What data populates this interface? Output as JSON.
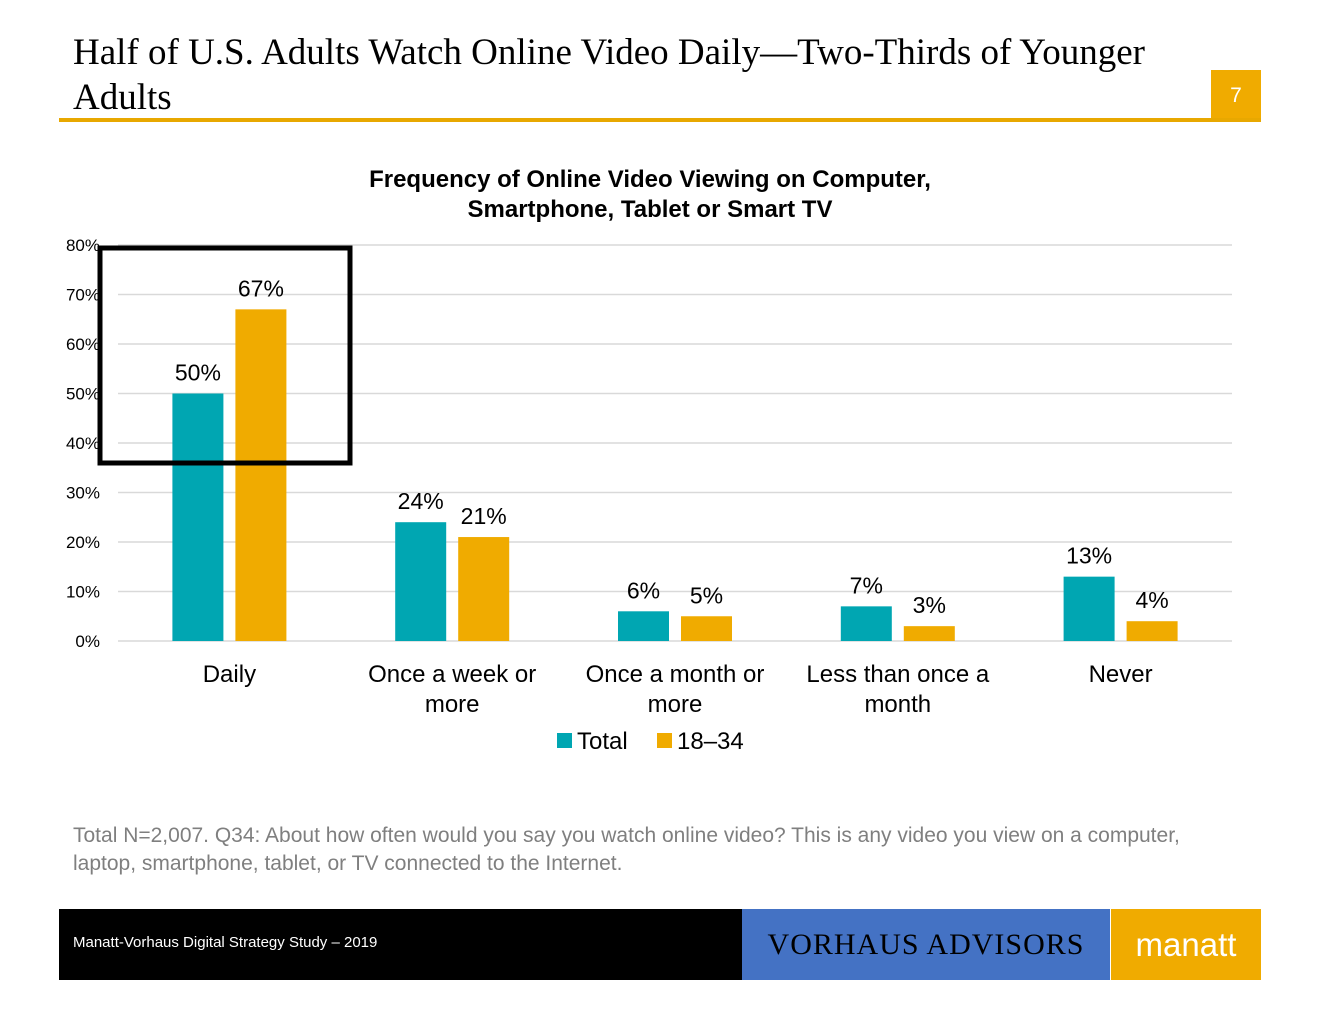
{
  "slide": {
    "title": "Half of U.S. Adults Watch Online Video Daily—Two-Thirds of Younger Adults",
    "page_number": "7",
    "accent_color": "#f0ab00"
  },
  "chart_data": {
    "type": "bar",
    "title": "Frequency of Online Video Viewing on Computer, Smartphone, Tablet or Smart TV",
    "categories": [
      [
        "Daily"
      ],
      [
        "Once a week or",
        "more"
      ],
      [
        "Once a month or",
        "more"
      ],
      [
        "Less than once a",
        "month"
      ],
      [
        "Never"
      ]
    ],
    "series": [
      {
        "name": "Total",
        "color": "#00a6b2",
        "values": [
          50,
          24,
          6,
          7,
          13
        ],
        "labels": [
          "50%",
          "24%",
          "6%",
          "7%",
          "13%"
        ]
      },
      {
        "name": "18–34",
        "color": "#f0ab00",
        "values": [
          67,
          21,
          5,
          3,
          4
        ],
        "labels": [
          "67%",
          "21%",
          "5%",
          "3%",
          "4%"
        ]
      }
    ],
    "ylim": [
      0,
      80
    ],
    "yticks": [
      "0%",
      "10%",
      "20%",
      "30%",
      "40%",
      "50%",
      "60%",
      "70%",
      "80%"
    ],
    "grid": true,
    "legend": "bottom-center",
    "highlight": "Daily"
  },
  "footnote": "Total N=2,007. Q34: About how often would you say you watch online video? This is any video you view on a computer, laptop, smartphone, tablet, or TV connected to the Internet.",
  "footer": {
    "study": "Manatt-Vorhaus Digital Strategy Study – 2019",
    "logo_vorhaus": "VORHAUS ADVISORS",
    "logo_manatt": "manatt"
  }
}
